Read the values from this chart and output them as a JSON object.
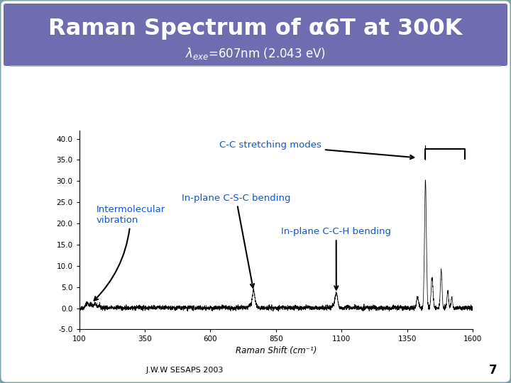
{
  "title": "Raman Spectrum of α6T at 300K",
  "subtitle_left": "λ",
  "subtitle_sub": "exe",
  "subtitle_right": "=607nm (2.043 eV)",
  "xlabel": "Raman Shift (cm⁻¹)",
  "xlim": [
    100,
    1600
  ],
  "ylim": [
    -5.0,
    42.0
  ],
  "yticks": [
    -5.0,
    0.0,
    5.0,
    10.0,
    15.0,
    20.0,
    25.0,
    30.0,
    35.0,
    40.0
  ],
  "ytick_labels": [
    "-5.0",
    "0.0",
    "5.0",
    "10.0",
    "15.0",
    "20.0",
    "25.0",
    "30.0",
    "35.0",
    "40.0"
  ],
  "xticks": [
    100,
    350,
    600,
    850,
    1100,
    1350,
    1600
  ],
  "title_bg_color": "#6f6db0",
  "title_color": "#ffffff",
  "slide_bg_color": "#ffffff",
  "border_color": "#7aa5a8",
  "annotation_color": "#1155cc",
  "spectrum_color": "#000000",
  "footer_text": "J.W.W SESAPS 2003",
  "footer_number": "7"
}
